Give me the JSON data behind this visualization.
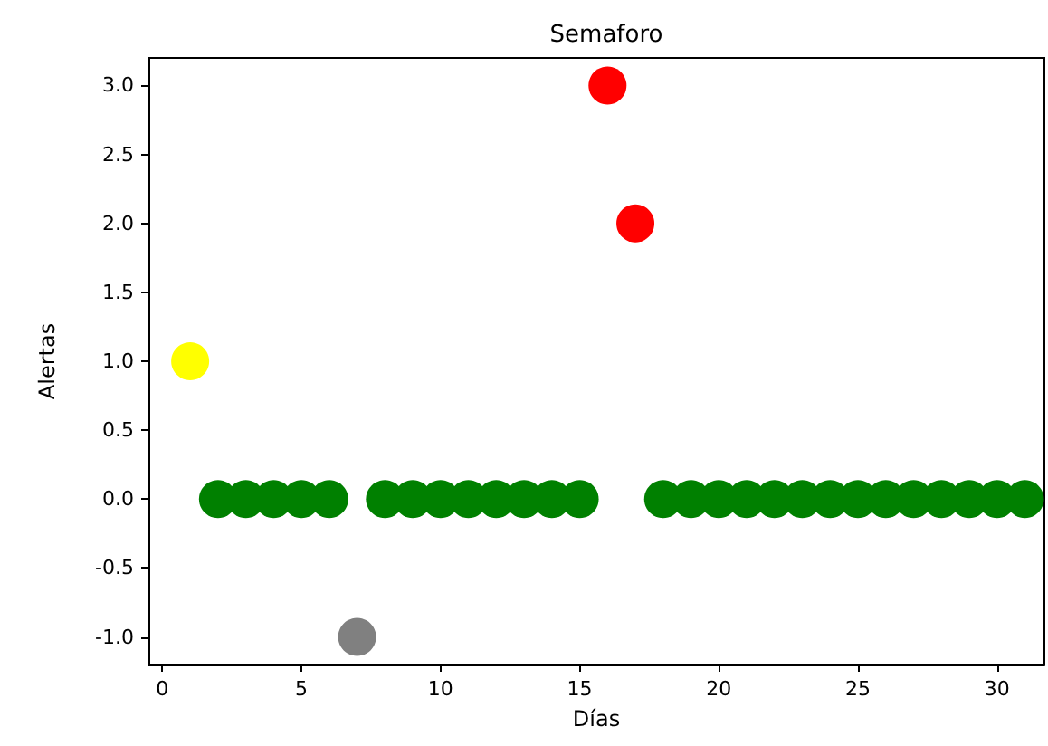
{
  "chart_data": {
    "type": "scatter",
    "title": "Semaforo",
    "xlabel": "Días",
    "ylabel": "Alertas",
    "x": [
      1,
      2,
      3,
      4,
      5,
      6,
      7,
      8,
      9,
      10,
      11,
      12,
      13,
      14,
      15,
      16,
      17,
      18,
      19,
      20,
      21,
      22,
      23,
      24,
      25,
      26,
      27,
      28,
      29,
      30,
      31
    ],
    "values": [
      1,
      0,
      0,
      0,
      0,
      0,
      -1,
      0,
      0,
      0,
      0,
      0,
      0,
      0,
      0,
      3,
      2,
      0,
      0,
      0,
      0,
      0,
      0,
      0,
      0,
      0,
      0,
      0,
      0,
      0,
      0
    ],
    "colors": [
      "#ffff00",
      "#008000",
      "#008000",
      "#008000",
      "#008000",
      "#008000",
      "#808080",
      "#008000",
      "#008000",
      "#008000",
      "#008000",
      "#008000",
      "#008000",
      "#008000",
      "#008000",
      "#ff0000",
      "#ff0000",
      "#008000",
      "#008000",
      "#008000",
      "#008000",
      "#008000",
      "#008000",
      "#008000",
      "#008000",
      "#008000",
      "#008000",
      "#008000",
      "#008000",
      "#008000",
      "#008000"
    ],
    "marker": "circle",
    "xlim": [
      -0.5,
      31.7
    ],
    "ylim": [
      -1.2,
      3.2
    ],
    "xticks": [
      0,
      5,
      10,
      15,
      20,
      25,
      30
    ],
    "yticks": [
      {
        "value": -1,
        "label": "-1.0"
      },
      -0.5,
      {
        "value": 0,
        "label": "0.0"
      },
      0.5,
      {
        "value": 1,
        "label": "1.0"
      },
      1.5,
      {
        "value": 2,
        "label": "2.0"
      },
      2.5,
      {
        "value": 3,
        "label": "3.0"
      }
    ],
    "grid": false
  }
}
